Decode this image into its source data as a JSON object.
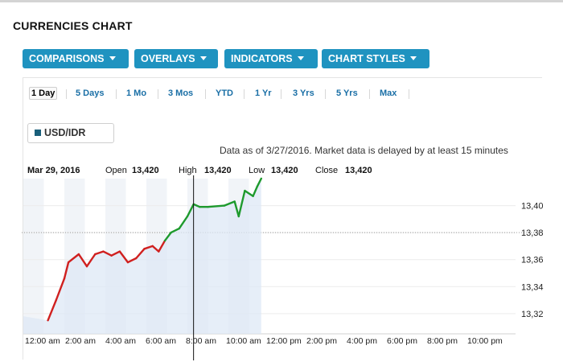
{
  "title": "CURRENCIES CHART",
  "toolbar": [
    {
      "label": "COMPARISONS"
    },
    {
      "label": "OVERLAYS"
    },
    {
      "label": "INDICATORS"
    },
    {
      "label": "CHART STYLES"
    }
  ],
  "ranges": [
    {
      "label": "1 Day",
      "active": true
    },
    {
      "label": "5 Days",
      "active": false
    },
    {
      "label": "1 Mo",
      "active": false
    },
    {
      "label": "3 Mos",
      "active": false
    },
    {
      "label": "YTD",
      "active": false
    },
    {
      "label": "1 Yr",
      "active": false
    },
    {
      "label": "3 Yrs",
      "active": false
    },
    {
      "label": "5 Yrs",
      "active": false
    },
    {
      "label": "Max",
      "active": false
    }
  ],
  "symbol": "USD/IDR",
  "as_of": "Data as of 3/27/2016. Market data is delayed by at least 15 minutes",
  "ohlc": {
    "date": "Mar 29, 2016",
    "open_label": "Open",
    "open": "13,420",
    "high_label": "High",
    "high": "13,420",
    "low_label": "Low",
    "low": "13,420",
    "close_label": "Close",
    "close": "13,420"
  },
  "colors": {
    "accent": "#1f93c0",
    "down": "#d0201f",
    "up": "#1e9a2d",
    "area": "#dde8f5",
    "band": "#f1f4f8"
  },
  "chart_data": {
    "type": "line",
    "x_ticks": [
      "12:00 am",
      "2:00 am",
      "4:00 am",
      "6:00 am",
      "8:00 am",
      "10:00 am",
      "12:00 pm",
      "2:00 pm",
      "4:00 pm",
      "6:00 pm",
      "8:00 pm",
      "10:00 pm"
    ],
    "y_ticks": [
      "13,32",
      "13,34",
      "13,36",
      "13,38",
      "13,40"
    ],
    "y_tick_values": [
      13320,
      13340,
      13360,
      13380,
      13400
    ],
    "ylim": [
      13305,
      13420
    ],
    "x_unit": "hours",
    "xlim": [
      0,
      24
    ],
    "previous_close": 13380,
    "crosshair_x": 8.3,
    "series": [
      {
        "values": [
          [
            1.2,
            13315
          ],
          [
            1.6,
            13330
          ],
          [
            2.0,
            13346
          ],
          [
            2.2,
            13358
          ],
          [
            2.7,
            13364
          ],
          [
            3.1,
            13355
          ],
          [
            3.5,
            13364
          ],
          [
            3.9,
            13366
          ],
          [
            4.3,
            13363
          ],
          [
            4.7,
            13366
          ],
          [
            5.1,
            13358
          ],
          [
            5.5,
            13361
          ],
          [
            5.9,
            13368
          ],
          [
            6.3,
            13370
          ],
          [
            6.6,
            13366
          ],
          [
            6.9,
            13374
          ],
          [
            7.2,
            13380
          ],
          [
            7.6,
            13383
          ],
          [
            8.0,
            13392
          ],
          [
            8.3,
            13401
          ],
          [
            8.6,
            13399
          ],
          [
            9.0,
            13399
          ],
          [
            9.8,
            13400
          ],
          [
            10.3,
            13403
          ],
          [
            10.5,
            13392
          ],
          [
            10.8,
            13411
          ],
          [
            11.2,
            13407
          ],
          [
            11.4,
            13414
          ],
          [
            11.6,
            13420
          ]
        ]
      }
    ]
  }
}
